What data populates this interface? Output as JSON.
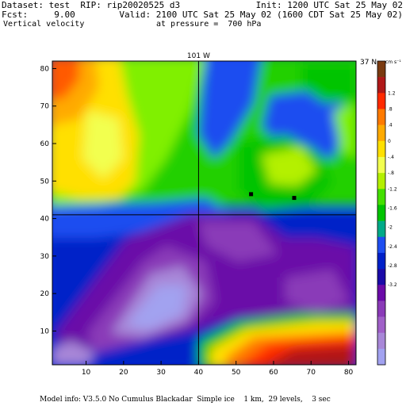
{
  "header": {
    "dataset_line": "Dataset: test  RIP: rip20020525 d3",
    "init_line": "Init: 1200 UTC Sat 25 May 02",
    "fcst_line": "Fcst:     9.00",
    "valid_line": "Valid: 2100 UTC Sat 25 May 02 (1600 CDT Sat 25 May 02)",
    "field_line": "Vertical velocity",
    "pressure_line": "at pressure =  700 hPa"
  },
  "footer": {
    "model_info": "Model info: V3.5.0 No Cumulus Blackadar  Simple ice    1 km,  29 levels,    3 sec"
  },
  "chart_data": {
    "type": "heatmap",
    "title": "",
    "xlabel": "",
    "ylabel": "",
    "xlim": [
      1,
      82
    ],
    "ylim": [
      1,
      82
    ],
    "x_ticks": [
      10,
      20,
      30,
      40,
      50,
      60,
      70,
      80
    ],
    "y_ticks": [
      10,
      20,
      30,
      40,
      50,
      60,
      70,
      80
    ],
    "grid": false,
    "crosshair": {
      "x": 40,
      "y": 41,
      "top_label": "101 W",
      "right_label": "37 N"
    },
    "markers": [
      {
        "x": 54,
        "y": 46.5
      },
      {
        "x": 65.5,
        "y": 45.5
      }
    ],
    "colorbar": {
      "units": "cm s⁻¹",
      "levels": [
        "1.2",
        ".8",
        ".4",
        "0",
        "-.4",
        "-.8",
        "-1.2",
        "-1.6",
        "-2",
        "-2.4",
        "-2.8",
        "-3.2"
      ],
      "colors": [
        "#7a3a10",
        "#b01818",
        "#ff2a00",
        "#ff7a00",
        "#ffaa00",
        "#ffe000",
        "#f2ff50",
        "#b4f000",
        "#44e000",
        "#00c400",
        "#00aa88",
        "#1e4ef0",
        "#0020c8",
        "#1a0aa8",
        "#6a0aa8",
        "#8a3ab8",
        "#a060c8",
        "#a887d8",
        "#a2a2f0"
      ]
    }
  }
}
